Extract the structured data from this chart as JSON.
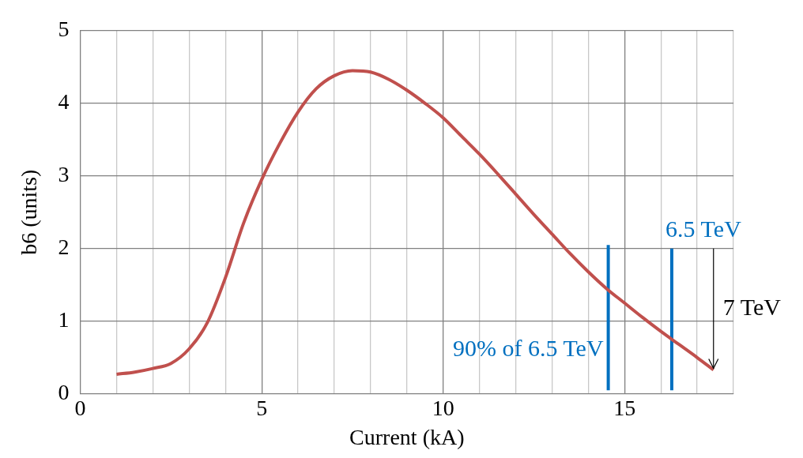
{
  "chart_data": {
    "type": "line",
    "xlabel": "Current (kA)",
    "ylabel": "b6 (units)",
    "xlim": [
      0,
      18
    ],
    "xticks": [
      0,
      5,
      10,
      15
    ],
    "ylim": [
      0,
      5
    ],
    "yticks": [
      0,
      1,
      2,
      3,
      4,
      5
    ],
    "grid": true,
    "marker": "none",
    "line_style": "solid",
    "series": [
      {
        "color": "#c0504d",
        "x": [
          1,
          1.5,
          2,
          2.5,
          3,
          3.5,
          4,
          4.5,
          5,
          5.5,
          6,
          6.5,
          7,
          7.5,
          8,
          8.5,
          9,
          9.5,
          10,
          10.5,
          11,
          11.5,
          12,
          12.5,
          13,
          13.5,
          14,
          14.5,
          15,
          15.5,
          16,
          16.5,
          17,
          17.45
        ],
        "values": [
          0.27,
          0.3,
          0.35,
          0.42,
          0.62,
          0.98,
          1.6,
          2.35,
          2.95,
          3.45,
          3.88,
          4.2,
          4.38,
          4.45,
          4.43,
          4.33,
          4.18,
          4.0,
          3.8,
          3.55,
          3.3,
          3.03,
          2.75,
          2.47,
          2.2,
          1.93,
          1.68,
          1.45,
          1.25,
          1.05,
          0.86,
          0.68,
          0.5,
          0.33
        ]
      },
      {
        "color": "#0070c0",
        "x": [
          14.55,
          14.55
        ],
        "values": [
          0.05,
          2.05
        ]
      },
      {
        "color": "#0070c0",
        "x": [
          16.3,
          16.3
        ],
        "values": [
          0.05,
          2.0
        ]
      }
    ],
    "annotations": [
      {
        "text": "90% of 6.5 TeV",
        "x": 14.55,
        "y": 0.6
      },
      {
        "text": "6.5 TeV",
        "x": 16.3,
        "y": 2.0
      },
      {
        "text": "7 TeV",
        "x": 17.45,
        "y": 0.33
      }
    ]
  }
}
